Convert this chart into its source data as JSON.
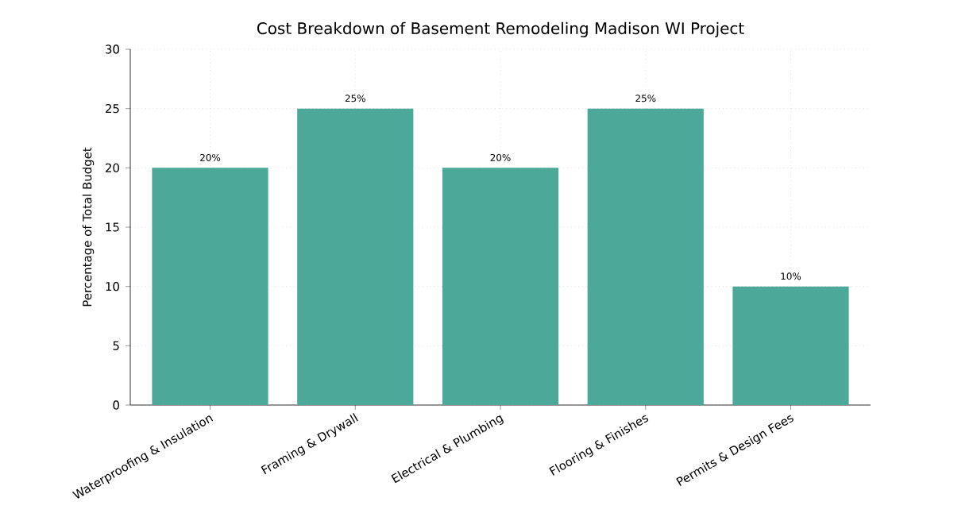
{
  "chart_data": {
    "type": "bar",
    "title": "Cost Breakdown of Basement Remodeling Madison WI Project",
    "ylabel": "Percentage of Total Budget",
    "categories": [
      "Waterproofing & Insulation",
      "Framing & Drywall",
      "Electrical & Plumbing",
      "Flooring & Finishes",
      "Permits & Design Fees"
    ],
    "values": [
      20,
      25,
      20,
      25,
      10
    ],
    "value_labels": [
      "20%",
      "25%",
      "20%",
      "25%",
      "10%"
    ],
    "color": "#4ca899",
    "ylim": [
      0,
      30
    ],
    "yticks": [
      0,
      5,
      10,
      15,
      20,
      25,
      30
    ],
    "grid": true
  }
}
